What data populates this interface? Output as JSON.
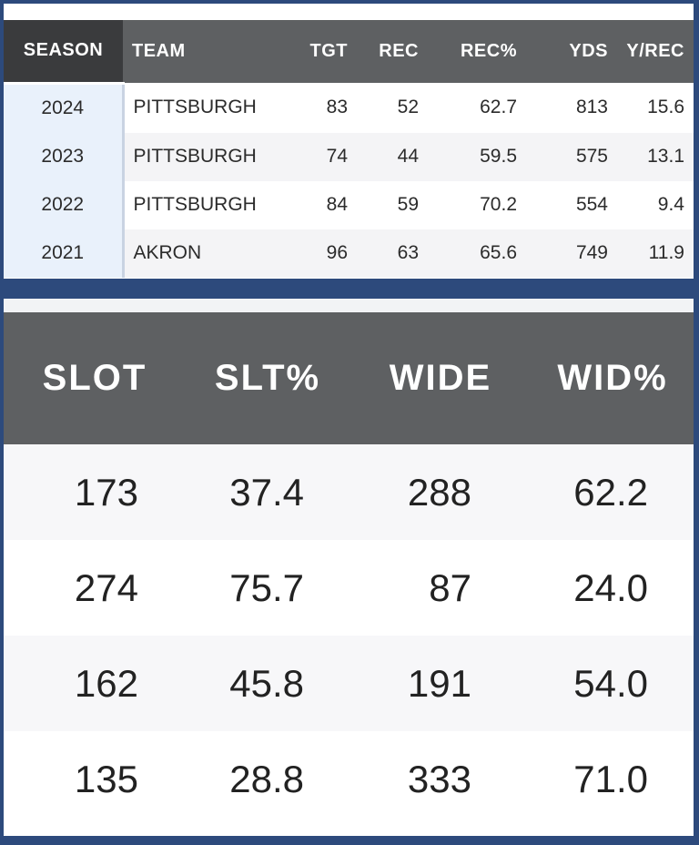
{
  "receiving_table": {
    "columns": [
      "SEASON",
      "TEAM",
      "TGT",
      "REC",
      "REC%",
      "YDS",
      "Y/REC"
    ],
    "rows": [
      [
        "2024",
        "PITTSBURGH",
        "83",
        "52",
        "62.7",
        "813",
        "15.6"
      ],
      [
        "2023",
        "PITTSBURGH",
        "74",
        "44",
        "59.5",
        "575",
        "13.1"
      ],
      [
        "2022",
        "PITTSBURGH",
        "84",
        "59",
        "70.2",
        "554",
        "9.4"
      ],
      [
        "2021",
        "AKRON",
        "96",
        "63",
        "65.6",
        "749",
        "11.9"
      ]
    ]
  },
  "alignment_table": {
    "columns": [
      "SLOT",
      "SLT%",
      "WIDE",
      "WID%"
    ],
    "rows": [
      [
        "173",
        "37.4",
        "288",
        "62.2"
      ],
      [
        "274",
        "75.7",
        "87",
        "24.0"
      ],
      [
        "162",
        "45.8",
        "191",
        "54.0"
      ],
      [
        "135",
        "28.8",
        "333",
        "71.0"
      ]
    ]
  },
  "colors": {
    "frame": "#2d4a7c",
    "header_bg": "#5e6062",
    "season_header_bg": "#3a3b3d",
    "season_cell_bg": "#e9f1fb"
  }
}
